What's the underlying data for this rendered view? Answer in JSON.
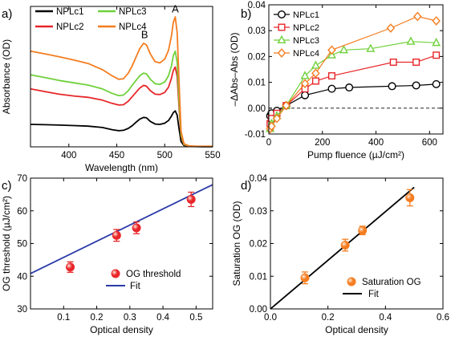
{
  "chart_data": [
    {
      "panel": "a)",
      "type": "line",
      "xlabel": "Wavelength (nm)",
      "ylabel": "Absorbance (OD)",
      "xlim": [
        360,
        550
      ],
      "ylim": [
        0,
        0.8
      ],
      "xticks": [
        400,
        450,
        500,
        550
      ],
      "yticks": [],
      "legend": "top-left",
      "annotations": [
        {
          "text": "A",
          "x": 511,
          "y": 0.765
        },
        {
          "text": "B",
          "x": 479,
          "y": 0.62
        }
      ],
      "series": [
        {
          "name": "NPLc1",
          "color": "#000000",
          "x": [
            360,
            375,
            390,
            405,
            420,
            435,
            445,
            452,
            457,
            462,
            466,
            470,
            474,
            478,
            481,
            485,
            490,
            495,
            500,
            504,
            507,
            509,
            511,
            513,
            515,
            517,
            520,
            525,
            530,
            540,
            550
          ],
          "y": [
            0.128,
            0.126,
            0.124,
            0.121,
            0.118,
            0.11,
            0.098,
            0.092,
            0.094,
            0.105,
            0.12,
            0.14,
            0.158,
            0.168,
            0.165,
            0.145,
            0.13,
            0.128,
            0.135,
            0.15,
            0.175,
            0.195,
            0.205,
            0.18,
            0.1,
            0.03,
            0.008,
            0.003,
            0.002,
            0.001,
            0.001
          ]
        },
        {
          "name": "NPLc2",
          "color": "#e8262a",
          "x": [
            360,
            375,
            390,
            405,
            420,
            435,
            445,
            452,
            457,
            462,
            466,
            470,
            474,
            478,
            481,
            485,
            490,
            495,
            500,
            504,
            507,
            509,
            511,
            513,
            515,
            517,
            520,
            525,
            530,
            540,
            550
          ],
          "y": [
            0.33,
            0.315,
            0.3,
            0.29,
            0.282,
            0.266,
            0.248,
            0.238,
            0.24,
            0.26,
            0.285,
            0.31,
            0.335,
            0.35,
            0.345,
            0.32,
            0.3,
            0.298,
            0.31,
            0.34,
            0.39,
            0.435,
            0.455,
            0.4,
            0.22,
            0.06,
            0.012,
            0.004,
            0.003,
            0.002,
            0.002
          ]
        },
        {
          "name": "NPLc3",
          "color": "#6fd13b",
          "x": [
            360,
            375,
            390,
            405,
            420,
            435,
            445,
            452,
            457,
            462,
            466,
            470,
            474,
            478,
            481,
            485,
            490,
            495,
            500,
            504,
            507,
            509,
            511,
            513,
            515,
            517,
            520,
            525,
            530,
            540,
            550
          ],
          "y": [
            0.41,
            0.395,
            0.378,
            0.365,
            0.352,
            0.33,
            0.305,
            0.292,
            0.295,
            0.32,
            0.35,
            0.378,
            0.405,
            0.42,
            0.415,
            0.385,
            0.36,
            0.356,
            0.37,
            0.405,
            0.46,
            0.52,
            0.545,
            0.48,
            0.26,
            0.07,
            0.014,
            0.005,
            0.003,
            0.002,
            0.002
          ]
        },
        {
          "name": "NPLc4",
          "color": "#f47d20",
          "x": [
            360,
            375,
            390,
            405,
            420,
            435,
            445,
            452,
            457,
            462,
            466,
            470,
            474,
            478,
            481,
            485,
            490,
            495,
            500,
            504,
            507,
            509,
            511,
            513,
            515,
            517,
            520,
            525,
            530,
            540,
            550
          ],
          "y": [
            0.545,
            0.53,
            0.513,
            0.495,
            0.475,
            0.44,
            0.405,
            0.385,
            0.388,
            0.42,
            0.46,
            0.51,
            0.56,
            0.59,
            0.58,
            0.53,
            0.485,
            0.478,
            0.5,
            0.55,
            0.63,
            0.71,
            0.74,
            0.65,
            0.36,
            0.09,
            0.018,
            0.006,
            0.004,
            0.003,
            0.003
          ]
        }
      ]
    },
    {
      "panel": "b)",
      "type": "line",
      "xlabel": "Pump fluence (µJ/cm²)",
      "ylabel": "–ΔAbs–Abs (OD)",
      "xlim": [
        0,
        650
      ],
      "ylim": [
        -0.01,
        0.04
      ],
      "xticks": [
        0,
        200,
        400,
        600
      ],
      "yticks": [
        -0.01,
        0.0,
        0.01,
        0.02,
        0.03,
        0.04
      ],
      "ytick_labels": [
        "-0.01",
        "0.00",
        "0.01",
        "0.02",
        "0.03",
        "0.04"
      ],
      "zero_line": true,
      "legend": "top-left",
      "series": [
        {
          "name": "NPLc1",
          "color": "#000000",
          "marker": "circle",
          "x": [
            5,
            10,
            30,
            65,
            135,
            235,
            300,
            460,
            550,
            625
          ],
          "y": [
            -0.003,
            -0.002,
            -0.001,
            0.001,
            0.005,
            0.0075,
            0.008,
            0.0085,
            0.0088,
            0.0093
          ]
        },
        {
          "name": "NPLc2",
          "color": "#e8262a",
          "marker": "square",
          "x": [
            5,
            10,
            30,
            65,
            135,
            175,
            235,
            465,
            550,
            625
          ],
          "y": [
            -0.006,
            -0.004,
            -0.002,
            0.001,
            0.0075,
            0.0105,
            0.0125,
            0.0178,
            0.0178,
            0.0205
          ]
        },
        {
          "name": "NPLc3",
          "color": "#6fd13b",
          "marker": "triangle",
          "x": [
            5,
            10,
            30,
            65,
            135,
            175,
            235,
            280,
            380,
            530,
            625
          ],
          "y": [
            -0.008,
            -0.006,
            -0.003,
            0.001,
            0.0125,
            0.0165,
            0.0205,
            0.0225,
            0.023,
            0.0258,
            0.0253
          ]
        },
        {
          "name": "NPLc4",
          "color": "#f47d20",
          "marker": "diamond",
          "x": [
            5,
            10,
            30,
            65,
            135,
            175,
            235,
            455,
            555,
            625
          ],
          "y": [
            -0.008,
            -0.007,
            -0.004,
            0.001,
            0.0095,
            0.0135,
            0.0225,
            0.031,
            0.0355,
            0.0338
          ]
        }
      ]
    },
    {
      "panel": "c)",
      "type": "scatter",
      "xlabel": "Optical density",
      "ylabel": "OG threshold (µJ/cm²)",
      "xlim": [
        0.0,
        0.55
      ],
      "ylim": [
        30,
        70
      ],
      "xticks": [
        0.1,
        0.2,
        0.3,
        0.4,
        0.5
      ],
      "xtick_labels": [
        "0.1",
        "0.2",
        "0.3",
        "0.4",
        "0.5"
      ],
      "yticks": [
        30,
        40,
        50,
        60,
        70
      ],
      "legend": "bottom-right",
      "series": [
        {
          "name": "OG threshold",
          "color": "#e8262a",
          "marker": "circle",
          "x": [
            0.12,
            0.26,
            0.32,
            0.485
          ],
          "y": [
            42.8,
            52.5,
            54.8,
            63.5
          ],
          "err": [
            1.6,
            1.8,
            1.8,
            2.2
          ]
        }
      ],
      "fit": {
        "name": "Fit",
        "color": "#2b3ba8",
        "x": [
          0.0,
          0.55
        ],
        "y": [
          40.8,
          68.0
        ]
      }
    },
    {
      "panel": "d)",
      "type": "scatter",
      "xlabel": "Optical density",
      "ylabel": "Saturation OG (OD)",
      "xlim": [
        0.0,
        0.6
      ],
      "ylim": [
        0.0,
        0.04
      ],
      "xticks": [
        0.0,
        0.2,
        0.4,
        0.6
      ],
      "xtick_labels": [
        "0.0",
        "0.2",
        "0.4",
        "0.6"
      ],
      "yticks": [
        0.0,
        0.01,
        0.02,
        0.03,
        0.04
      ],
      "ytick_labels": [
        "0.00",
        "0.01",
        "0.02",
        "0.03",
        "0.04"
      ],
      "legend": "bottom-right",
      "series": [
        {
          "name": "Saturation OG",
          "color": "#f47d20",
          "marker": "circle",
          "x": [
            0.12,
            0.26,
            0.32,
            0.485
          ],
          "y": [
            0.0095,
            0.0195,
            0.024,
            0.034
          ],
          "err": [
            0.0018,
            0.0018,
            0.0013,
            0.0025
          ]
        }
      ],
      "fit": {
        "name": "Fit",
        "color": "#000000",
        "x": [
          0.0,
          0.5
        ],
        "y": [
          0.0,
          0.0372
        ]
      }
    }
  ]
}
